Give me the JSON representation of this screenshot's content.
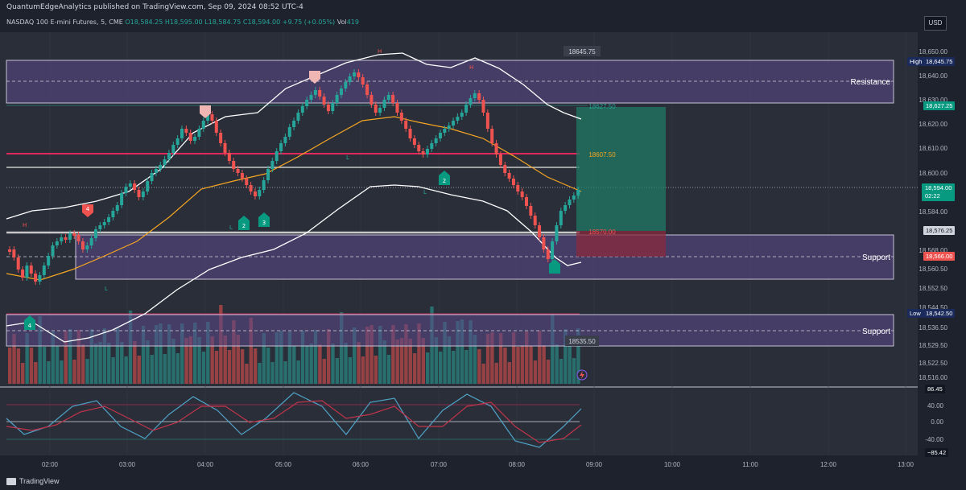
{
  "publisher_line": "QuantumEdgeAnalytics published on TradingView.com, Sep 09, 2024 08:52 UTC-4",
  "symbol_line": {
    "name": "NASDAQ 100 E-mini Futures, 5, CME",
    "open": "O18,584.25",
    "high": "H18,595.00",
    "low": "L18,584.75",
    "close": "C18,594.00",
    "change": "+9.75 (+0.05%)",
    "volume_label": "Vol",
    "volume": "419"
  },
  "currency": "USD",
  "footer_logo": "TradingView",
  "zones": [
    {
      "label": "Resistance"
    },
    {
      "label": "Support"
    },
    {
      "label": "Support"
    }
  ],
  "price_axis": {
    "ticks": [
      "18,650.00",
      "18,640.00",
      "18,630.00",
      "18,620.00",
      "18,610.00",
      "18,600.00",
      "18,584.00",
      "18,568.00",
      "18,560.50",
      "18,552.50",
      "18,544.50",
      "18,536.50",
      "18,529.50",
      "18,522.50",
      "18,516.00"
    ],
    "high_label": "High",
    "high_value": "18,645.75",
    "level_green": "18,627.25",
    "current_price": "18,594.00",
    "countdown": "02:22",
    "level_white": "18,576.25",
    "level_red": "18,566.00",
    "low_label": "Low",
    "low_value": "18,542.50"
  },
  "chart_annotations": {
    "top_box": "18645.75",
    "target_box": "18627.50",
    "entry_box": "18607.50",
    "stop_box": "18570.00",
    "low_box": "18535.50"
  },
  "oscillator_axis": {
    "max": "86.45",
    "ticks": [
      "40.00",
      "0.00",
      "-40.00"
    ],
    "min": "−85.42"
  },
  "time_axis": [
    "02:00",
    "03:00",
    "04:00",
    "05:00",
    "06:00",
    "07:00",
    "08:00",
    "09:00",
    "10:00",
    "11:00",
    "12:00",
    "13:00"
  ],
  "markers": {
    "h": "H",
    "l": "L",
    "nums": [
      "4",
      "2",
      "3",
      "2",
      "4"
    ]
  },
  "colors": {
    "background": "#1e222d",
    "zone_fill": "#5b4a8a",
    "bull": "#26a69a",
    "bear": "#ef5350",
    "resistance_line": "#e0285a",
    "ema": "#f5a623",
    "band": "#ffffff",
    "target_fill": "#1f7a63",
    "stop_fill": "#8a2a3e"
  }
}
